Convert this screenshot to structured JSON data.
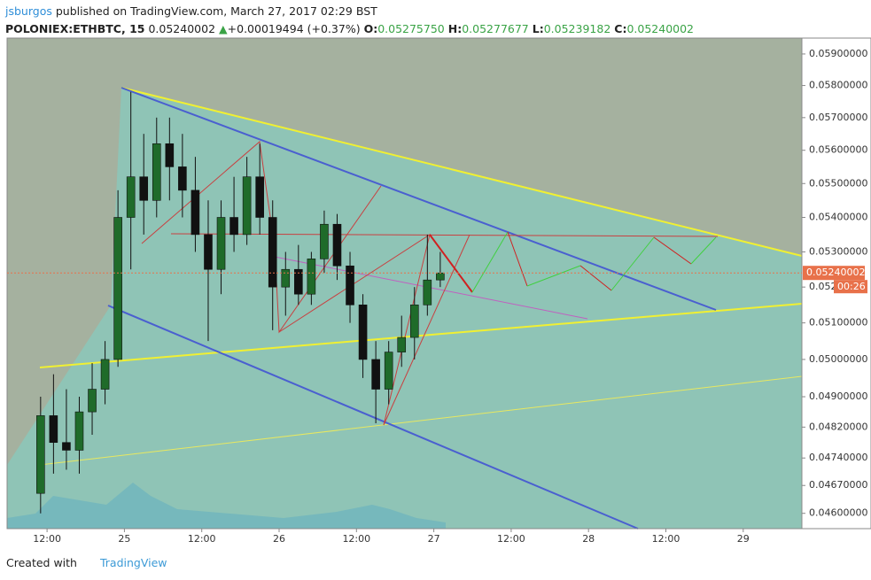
{
  "header": {
    "user": "jsburgos",
    "published": "published on TradingView.com, March 27, 2017 02:29 BST",
    "symbol": "POLONIEX:ETHBTC, 15",
    "price": "0.05240002",
    "arrow": "▲",
    "change": "+0.00019494 (+0.37%)",
    "o_label": "O:",
    "open": "0.05275750",
    "h_label": "H:",
    "high": "0.05277677",
    "l_label": "L:",
    "low": "0.05239182",
    "c_label": "C:",
    "close": "0.05240002"
  },
  "chart_data": {
    "type": "candlestick",
    "x": [
      11,
      13,
      15,
      17,
      19,
      21,
      23,
      25,
      27,
      29,
      31,
      33,
      35,
      37,
      39,
      41,
      43,
      45,
      47,
      49,
      51,
      53,
      55,
      57,
      59,
      61,
      63,
      65,
      67,
      69,
      71,
      73
    ],
    "open": [
      0.0465,
      0.0485,
      0.0478,
      0.0476,
      0.0486,
      0.0492,
      0.05,
      0.054,
      0.0552,
      0.0545,
      0.0562,
      0.0555,
      0.0548,
      0.0535,
      0.0525,
      0.054,
      0.0535,
      0.0552,
      0.054,
      0.052,
      0.0525,
      0.0518,
      0.0528,
      0.0538,
      0.0526,
      0.0515,
      0.05,
      0.0492,
      0.0502,
      0.0506,
      0.0515,
      0.0522
    ],
    "high": [
      0.049,
      0.0496,
      0.0492,
      0.049,
      0.0499,
      0.0505,
      0.0548,
      0.0578,
      0.0565,
      0.057,
      0.057,
      0.0565,
      0.0558,
      0.0545,
      0.0545,
      0.0552,
      0.0558,
      0.0562,
      0.0545,
      0.053,
      0.0532,
      0.053,
      0.0542,
      0.0541,
      0.053,
      0.0518,
      0.0505,
      0.0505,
      0.0512,
      0.052,
      0.0535,
      0.053
    ],
    "low": [
      0.046,
      0.047,
      0.0471,
      0.047,
      0.048,
      0.0488,
      0.0498,
      0.0525,
      0.0535,
      0.054,
      0.0545,
      0.054,
      0.053,
      0.0505,
      0.0518,
      0.053,
      0.0532,
      0.0535,
      0.0508,
      0.0512,
      0.0515,
      0.0515,
      0.0524,
      0.0522,
      0.051,
      0.0495,
      0.0483,
      0.0488,
      0.0498,
      0.05,
      0.0512,
      0.052
    ],
    "close": [
      0.0485,
      0.0478,
      0.0476,
      0.0486,
      0.0492,
      0.05,
      0.054,
      0.0552,
      0.0545,
      0.0562,
      0.0555,
      0.0548,
      0.0535,
      0.0525,
      0.054,
      0.0535,
      0.0552,
      0.054,
      0.052,
      0.0525,
      0.0518,
      0.0528,
      0.0538,
      0.0526,
      0.0515,
      0.05,
      0.0492,
      0.0502,
      0.0506,
      0.0515,
      0.0522,
      0.05240002
    ],
    "up_color": "#1f6b2a",
    "down_color": "#111111",
    "xlim": [
      5.8,
      129.1
    ],
    "xticks": [
      {
        "value": 12,
        "label": "12:00"
      },
      {
        "value": 24,
        "label": "25"
      },
      {
        "value": 36,
        "label": "12:00"
      },
      {
        "value": 48,
        "label": "26"
      },
      {
        "value": 60,
        "label": "12:00"
      },
      {
        "value": 72,
        "label": "27"
      },
      {
        "value": 84,
        "label": "12:00"
      },
      {
        "value": 96,
        "label": "28"
      },
      {
        "value": 108,
        "label": "12:00"
      },
      {
        "value": 120,
        "label": "29"
      }
    ],
    "ylim": [
      0.04562,
      0.05951
    ],
    "log_scale": true,
    "yticks": [
      {
        "value": 0.059,
        "label": "0.05900000"
      },
      {
        "value": 0.058,
        "label": "0.05800000"
      },
      {
        "value": 0.057,
        "label": "0.05700000"
      },
      {
        "value": 0.056,
        "label": "0.05600000"
      },
      {
        "value": 0.055,
        "label": "0.05500000"
      },
      {
        "value": 0.054,
        "label": "0.05400000"
      },
      {
        "value": 0.053,
        "label": "0.05300000"
      },
      {
        "value": 0.052,
        "label": "0.05200000"
      },
      {
        "value": 0.051,
        "label": "0.05100000"
      },
      {
        "value": 0.05,
        "label": "0.05000000"
      },
      {
        "value": 0.049,
        "label": "0.04900000"
      },
      {
        "value": 0.0482,
        "label": "0.04820000"
      },
      {
        "value": 0.0474,
        "label": "0.04740000"
      },
      {
        "value": 0.0467,
        "label": "0.04670000"
      },
      {
        "value": 0.046,
        "label": "0.04600000"
      }
    ],
    "last_price": {
      "value": 0.05240002,
      "label": "0.05240002"
    },
    "countdown": "00:26",
    "marker_color": "#e8714a"
  },
  "footer": {
    "created": "Created with",
    "brand": "TradingView"
  }
}
